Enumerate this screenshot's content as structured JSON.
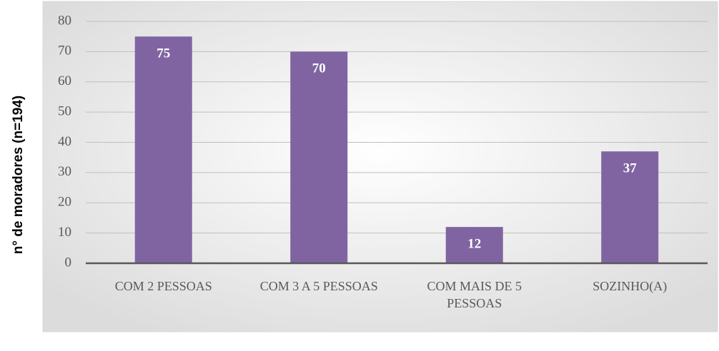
{
  "chart_data": {
    "type": "bar",
    "y_axis_label": "n° de moradores (n=194)",
    "categories": [
      "COM 2 PESSOAS",
      "COM 3 A 5 PESSOAS",
      "COM MAIS DE 5 PESSOAS",
      "SOZINHO(A)"
    ],
    "values": [
      75,
      70,
      12,
      37
    ],
    "color": "#8064a2",
    "ylim": [
      0,
      80
    ],
    "yticks": [
      0,
      10,
      20,
      30,
      40,
      50,
      60,
      70,
      80
    ],
    "grid": true
  }
}
